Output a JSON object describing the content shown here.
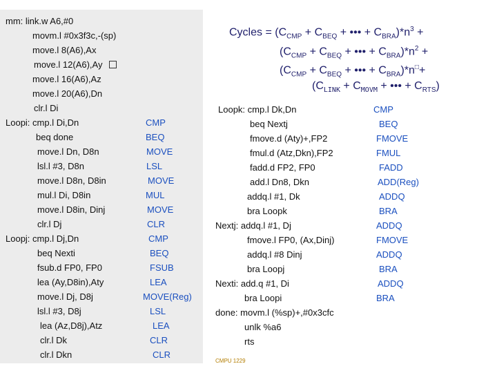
{
  "formula": {
    "line1": {
      "prefix": "Cycles = (C",
      "s1": "CMP",
      "m1": " + C",
      "s2": "BEQ",
      "m2": " + ••• + C",
      "s3": "BRA",
      "tail": ")*n",
      "exp": "3",
      "end": " +"
    },
    "line2": {
      "prefix": "(C",
      "s1": "CMP",
      "m1": " + C",
      "s2": "BEQ",
      "m2": " + ••• + C",
      "s3": "BRA",
      "tail": ")*n",
      "exp": "2",
      "end": " +"
    },
    "line3": {
      "prefix": "(C",
      "s1": "CMP",
      "m1": " + C",
      "s2": "BEQ",
      "m2": " + ••• + C",
      "s3": "BRA",
      "tail": ")*n",
      "exp": "□",
      "end": "+"
    },
    "line4": {
      "prefix": "(C",
      "s1": "LINK",
      "m1": " + C",
      "s2": "MOVM",
      "m2": " + ••• + C",
      "s3": "RTS",
      "tail": ")"
    }
  },
  "left_code": [
    "mm: link.w A6,#0",
    "movm.l #0x3f3c,-(sp)",
    "move.l 8(A6),Ax",
    "move.l 12(A6),Ay",
    "move.l 16(A6),Az",
    "move.l 20(A6),Dn",
    "clr.l Di",
    "Loopi: cmp.l Di,Dn",
    "beq done",
    "move.l Dn, D8n",
    "lsl.l #3, D8n",
    "move.l D8n, D8in",
    "mul.l  Di, D8in",
    "move.l D8in, Dinj",
    "clr.l Dj",
    "Loopj:  cmp.l Dj,Dn",
    "beq   Nexti",
    "fsub.d  FP0, FP0",
    "lea    (Ay,D8in),Aty",
    "move.l Dj, D8j",
    "lsl.l #3, D8j",
    "lea (Az,D8j),Atz",
    "clr.l Dk",
    "clr.l  Dkn"
  ],
  "left_ops": [
    "CMP",
    "BEQ",
    "MOVE",
    "LSL",
    "MOVE",
    "MUL",
    "MOVE",
    "CLR",
    "CMP",
    "BEQ",
    "FSUB",
    "LEA",
    "MOVE(Reg)",
    "LSL",
    "LEA",
    "CLR",
    "CLR"
  ],
  "right_code": [
    "Loopk:  cmp.l Dk,Dn",
    "beq   Nextj",
    "fmove.d (Aty)+,FP2",
    "fmul.d (Atz,Dkn),FP2",
    "fadd.d FP2, FP0",
    "add.l  Dn8, Dkn",
    "addq.l #1, Dk",
    "bra    Loopk",
    "Nextj:   addq.l #1, Dj",
    "fmove.l FP0, (Ax,Dinj)",
    "addq.l #8 Dinj",
    "bra    Loopj",
    "Nexti:   add.q  #1, Di",
    "bra    Loopi",
    "done:  movm.l (%sp)+,#0x3cfc",
    "unlk %a6",
    "rts"
  ],
  "right_ops": [
    "CMP",
    "BEQ",
    "FMOVE",
    "FMUL",
    "FADD",
    "ADD(Reg)",
    "ADDQ",
    "BRA",
    "ADDQ",
    "FMOVE",
    "ADDQ",
    "BRA",
    "ADDQ",
    "BRA"
  ],
  "footer": "CMPU 1229",
  "colors": {
    "panel": "#ececec",
    "keyword": "#1a4fbf",
    "formula": "#1f1f6b"
  },
  "icons": {
    "checkbox": "empty-box-icon"
  }
}
